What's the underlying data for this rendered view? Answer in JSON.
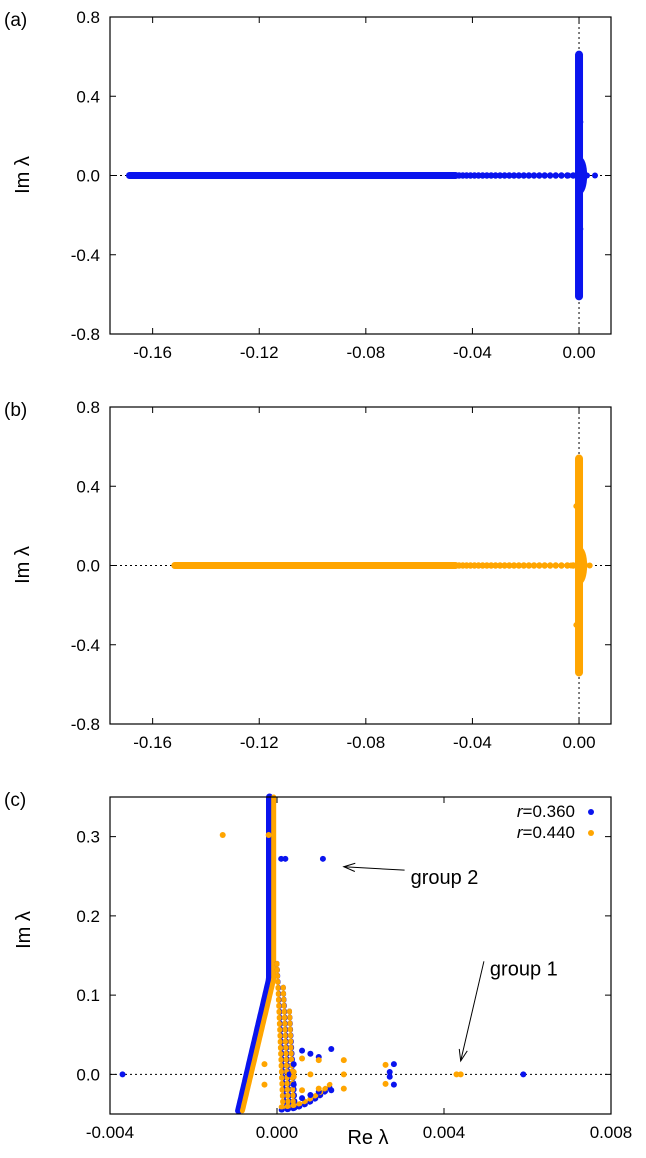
{
  "colors": {
    "blue": "#0a14ee",
    "orange": "#ffa500",
    "axis": "#000000"
  },
  "chart_data": [
    {
      "type": "scatter",
      "panel_label": "(a)",
      "xlabel": "",
      "ylabel": "Im λ",
      "xlim": [
        -0.176,
        0.012
      ],
      "ylim": [
        -0.8,
        0.8
      ],
      "x_ticks": [
        "-0.16",
        "-0.12",
        "-0.08",
        "-0.04",
        "0.00"
      ],
      "x_tick_values": [
        -0.16,
        -0.12,
        -0.08,
        -0.04,
        0.0
      ],
      "y_ticks": [
        "0.8",
        "0.4",
        "0.0",
        "-0.4",
        "-0.8"
      ],
      "y_tick_values": [
        0.8,
        0.4,
        0.0,
        -0.4,
        -0.8
      ],
      "zero_lines": true,
      "series": [
        {
          "color": "blue",
          "real_axis": {
            "min": -0.17,
            "max": 0.006
          },
          "imag_branch": {
            "re": 0.0,
            "min": -0.63,
            "max": 0.63
          },
          "isolated": [
            [
              0.0005,
              0.27
            ],
            [
              0.0005,
              -0.27
            ],
            [
              0.002,
              0.01
            ],
            [
              0.003,
              0.0
            ],
            [
              0.006,
              0.0
            ],
            [
              -0.004,
              0.0
            ],
            [
              0.001,
              0.04
            ],
            [
              0.001,
              -0.04
            ]
          ]
        }
      ]
    },
    {
      "type": "scatter",
      "panel_label": "(b)",
      "xlabel": "",
      "ylabel": "Im λ",
      "xlim": [
        -0.176,
        0.012
      ],
      "ylim": [
        -0.8,
        0.8
      ],
      "x_ticks": [
        "-0.16",
        "-0.12",
        "-0.08",
        "-0.04",
        "0.00"
      ],
      "x_tick_values": [
        -0.16,
        -0.12,
        -0.08,
        -0.04,
        0.0
      ],
      "y_ticks": [
        "0.8",
        "0.4",
        "0.0",
        "-0.4",
        "-0.8"
      ],
      "y_tick_values": [
        0.8,
        0.4,
        0.0,
        -0.4,
        -0.8
      ],
      "zero_lines": true,
      "series": [
        {
          "color": "orange",
          "real_axis": {
            "min": -0.153,
            "max": 0.004
          },
          "imag_branch": {
            "re": 0.0,
            "min": -0.56,
            "max": 0.56
          },
          "isolated": [
            [
              -0.001,
              0.3
            ],
            [
              -0.001,
              -0.3
            ],
            [
              0.002,
              0.01
            ],
            [
              0.004,
              0.0
            ],
            [
              -0.003,
              0.0
            ],
            [
              0.001,
              0.04
            ],
            [
              0.001,
              -0.04
            ]
          ]
        }
      ]
    },
    {
      "type": "scatter",
      "panel_label": "(c)",
      "xlabel": "Re λ",
      "ylabel": "Im λ",
      "xlim": [
        -0.004,
        0.008
      ],
      "ylim": [
        -0.05,
        0.35
      ],
      "x_ticks": [
        "-0.004",
        "0.000",
        "0.004",
        "0.008"
      ],
      "x_tick_values": [
        -0.004,
        0.0,
        0.004,
        0.008
      ],
      "y_ticks": [
        "0.3",
        "0.2",
        "0.1",
        "0.0"
      ],
      "y_tick_values": [
        0.3,
        0.2,
        0.1,
        0.0
      ],
      "zero_lines": false,
      "legend": {
        "placement": "top-right",
        "entries": [
          {
            "prefix": "r",
            "label": "=0.360",
            "color": "blue"
          },
          {
            "prefix": "r",
            "label": "=0.440",
            "color": "orange"
          }
        ]
      },
      "annotations": [
        {
          "text": "group 2",
          "text_at": [
            0.0032,
            0.24
          ],
          "arrow_to": [
            0.0016,
            0.262
          ]
        },
        {
          "text": "group 1",
          "text_at": [
            0.0051,
            0.125
          ],
          "arrow_to": [
            0.0044,
            0.017
          ]
        }
      ],
      "series": [
        {
          "name": "r=0.360",
          "color": "blue",
          "points": [
            [
              -0.0037,
              0.0
            ],
            [
              0.0059,
              0.0
            ],
            [
              0.0001,
              0.272
            ],
            [
              0.0002,
              0.272
            ],
            [
              0.0011,
              0.272
            ],
            [
              0.0006,
              0.03
            ],
            [
              0.0008,
              0.026
            ],
            [
              0.001,
              0.022
            ],
            [
              0.0013,
              0.032
            ],
            [
              0.0006,
              -0.03
            ],
            [
              0.0008,
              -0.026
            ],
            [
              0.001,
              -0.022
            ],
            [
              0.0013,
              -0.02
            ],
            [
              0.0028,
              0.013
            ],
            [
              0.0028,
              -0.013
            ],
            [
              0.0027,
              0.003
            ],
            [
              0.0027,
              -0.003
            ],
            [
              0.0004,
              0.013
            ],
            [
              0.0004,
              -0.013
            ],
            [
              0.0003,
              0.0
            ]
          ]
        },
        {
          "name": "r=0.440",
          "color": "orange",
          "points": [
            [
              -0.0013,
              0.302
            ],
            [
              -0.0002,
              0.302
            ],
            [
              0.0044,
              0.0
            ],
            [
              0.0043,
              0.0
            ],
            [
              0.0026,
              0.012
            ],
            [
              0.0026,
              -0.012
            ],
            [
              0.0016,
              0.018
            ],
            [
              0.0016,
              -0.018
            ],
            [
              0.001,
              0.018
            ],
            [
              0.001,
              -0.018
            ],
            [
              0.0006,
              0.02
            ],
            [
              0.0006,
              -0.02
            ],
            [
              -0.0003,
              0.013
            ],
            [
              -0.0003,
              -0.013
            ],
            [
              0.0004,
              0.003
            ],
            [
              0.0004,
              -0.003
            ],
            [
              0.0016,
              0.0
            ],
            [
              0.0008,
              0.0
            ]
          ]
        }
      ]
    }
  ]
}
